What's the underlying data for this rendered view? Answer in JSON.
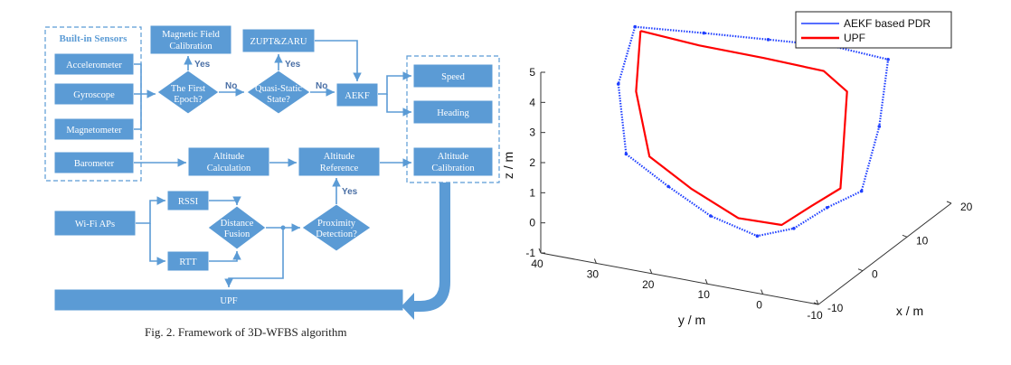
{
  "flowchart": {
    "group_title": "Built-in Sensors",
    "nodes": {
      "accelerometer": "Accelerometer",
      "gyroscope": "Gyroscope",
      "magnetometer": "Magnetometer",
      "barometer": "Barometer",
      "mag_calib_1": "Magnetic Field",
      "mag_calib_2": "Calibration",
      "zupt": "ZUPT&ZARU",
      "first_epoch_1": "The First",
      "first_epoch_2": "Epoch?",
      "quasi_1": "Quasi-Static",
      "quasi_2": "State?",
      "aekf": "AEKF",
      "speed": "Speed",
      "heading": "Heading",
      "alt_calc_1": "Altitude",
      "alt_calc_2": "Calculation",
      "alt_ref_1": "Altitude",
      "alt_ref_2": "Reference",
      "alt_calib_1": "Altitude",
      "alt_calib_2": "Calibration",
      "wifi": "Wi-Fi APs",
      "rssi": "RSSI",
      "rtt": "RTT",
      "dist_1": "Distance",
      "dist_2": "Fusion",
      "prox_1": "Proximity",
      "prox_2": "Detection?",
      "upf": "UPF"
    },
    "labels": {
      "yes_1": "Yes",
      "yes_2": "Yes",
      "yes_3": "Yes",
      "no_1": "No",
      "no_2": "No"
    },
    "caption": "Fig. 2.  Framework of 3D-WFBS algorithm"
  },
  "chart_data": {
    "type": "line",
    "projection": "3d",
    "title": "",
    "xlabel": "x / m",
    "ylabel": "y / m",
    "zlabel": "z / m",
    "xlim": [
      -10,
      20
    ],
    "ylim": [
      -10,
      40
    ],
    "zlim": [
      -1,
      5
    ],
    "x_ticks": [
      "-10",
      "0",
      "10",
      "20"
    ],
    "y_ticks": [
      "-10",
      "0",
      "10",
      "20",
      "30",
      "40"
    ],
    "z_ticks": [
      "-1",
      "0",
      "1",
      "2",
      "3",
      "4",
      "5"
    ],
    "grid": true,
    "legend_position": "top-right",
    "series": [
      {
        "name": "AEKF based PDR",
        "color": "#1f3fff",
        "style": "dotted-line",
        "points": [
          [
            5,
            35,
            5.0
          ],
          [
            8,
            25,
            4.8
          ],
          [
            10,
            15,
            4.7
          ],
          [
            12,
            5,
            4.6
          ],
          [
            12,
            -5,
            4.5
          ],
          [
            10,
            -5,
            2.5
          ],
          [
            6,
            -5,
            0.8
          ],
          [
            2,
            -2,
            0.6
          ],
          [
            -3,
            0,
            0.4
          ],
          [
            -5,
            5,
            0.2
          ],
          [
            -3,
            15,
            0.3
          ],
          [
            0,
            25,
            0.6
          ],
          [
            3,
            35,
            1.0
          ],
          [
            5,
            38,
            3.0
          ],
          [
            5,
            35,
            5.0
          ]
        ]
      },
      {
        "name": "UPF",
        "color": "#ff0000",
        "style": "solid-line",
        "points": [
          [
            5,
            34,
            4.9
          ],
          [
            7,
            25,
            4.5
          ],
          [
            9,
            15,
            4.2
          ],
          [
            10,
            5,
            4.0
          ],
          [
            9,
            0,
            3.6
          ],
          [
            8,
            0,
            1.5
          ],
          [
            5,
            -2,
            0.9
          ],
          [
            1,
            0,
            0.7
          ],
          [
            -2,
            3,
            0.3
          ],
          [
            -3,
            10,
            0.4
          ],
          [
            -1,
            20,
            0.8
          ],
          [
            2,
            30,
            1.2
          ],
          [
            4,
            34,
            3.0
          ],
          [
            5,
            34,
            4.9
          ]
        ]
      }
    ]
  }
}
